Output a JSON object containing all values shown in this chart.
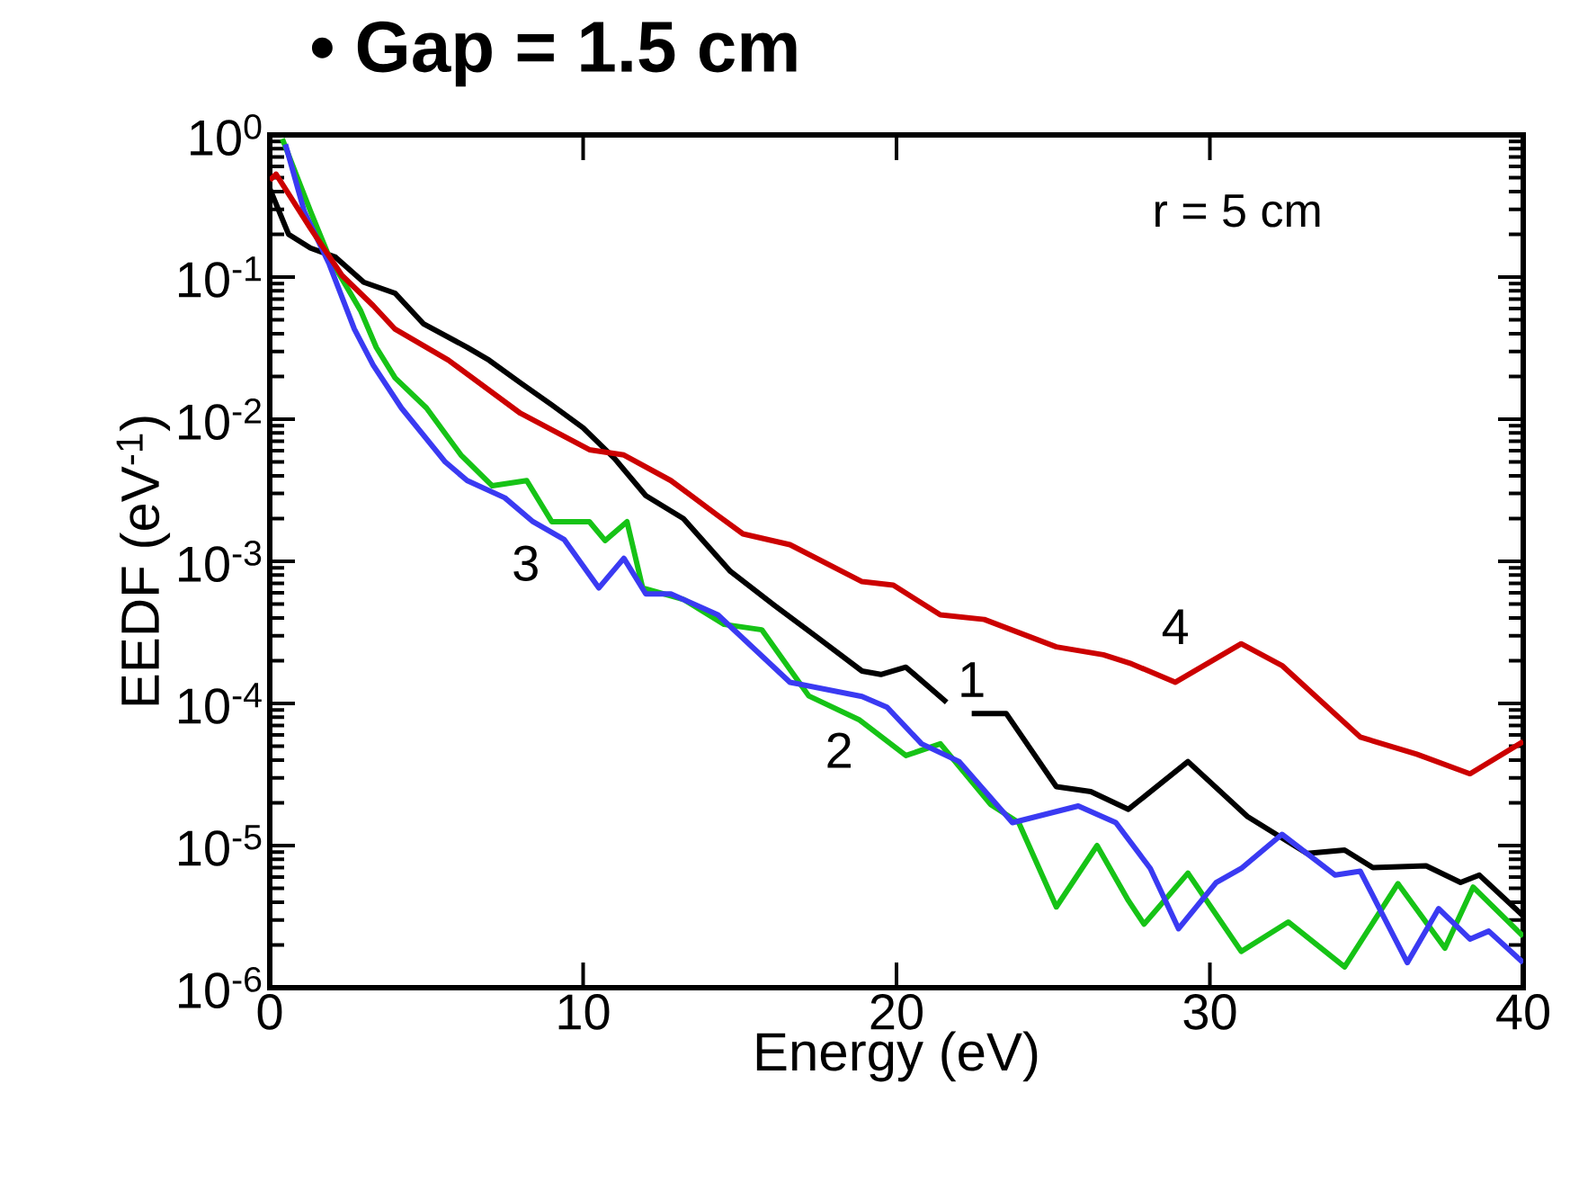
{
  "chart_data": {
    "type": "line",
    "title": "• Gap = 1.5 cm",
    "xlabel": "Energy (eV)",
    "ylabel": "EEDF (eV$^{-1}$)",
    "log": "y",
    "grid": false,
    "legend": false,
    "marker": "none",
    "line_style": "solid",
    "xlim": [
      0,
      40
    ],
    "ylim": [
      1e-06,
      1
    ],
    "xticks": [
      0,
      10,
      20,
      30,
      40
    ],
    "yticks": [
      {
        "value": 1e-06,
        "label": "10$^{-6}$"
      },
      {
        "value": 1e-05,
        "label": "10$^{-5}$"
      },
      {
        "value": 0.0001,
        "label": "10$^{-4}$"
      },
      {
        "value": 0.001,
        "label": "10$^{-3}$"
      },
      {
        "value": 0.01,
        "label": "10$^{-2}$"
      },
      {
        "value": 0.1,
        "label": "10$^{-1}$"
      },
      {
        "value": 1,
        "label": "10$^{0}$"
      }
    ],
    "series": [
      {
        "name": "1",
        "color": "#000000",
        "x": [
          0,
          0.6,
          1.3,
          2.1,
          3,
          4,
          4.9,
          6.3,
          7,
          8,
          9,
          10,
          11,
          12,
          13.2,
          14.7,
          16.1,
          17.4,
          18.9,
          19.5,
          20.3,
          21.6,
          22,
          22.4,
          23.5,
          25.1,
          26.2,
          27.4,
          29.3,
          31.2,
          33.1,
          34.3,
          35.2,
          36.9,
          38,
          38.6,
          40
        ],
        "values": [
          0.42,
          0.2,
          0.16,
          0.138,
          0.092,
          0.077,
          0.047,
          0.032,
          0.026,
          0.018,
          0.0126,
          0.0087,
          0.0053,
          0.0029,
          0.002,
          0.00085,
          0.00049,
          0.0003,
          0.000169,
          0.00016,
          0.00018,
          0.000102,
          null,
          8.5e-05,
          8.5e-05,
          2.6e-05,
          2.4e-05,
          1.8e-05,
          3.9e-05,
          1.6e-05,
          8.8e-06,
          9.3e-06,
          7e-06,
          7.2e-06,
          5.5e-06,
          6.2e-06,
          3.2e-06
        ]
      },
      {
        "name": "2",
        "color": "#16c316",
        "x": [
          0.4,
          1.3,
          1.9,
          2.9,
          3.4,
          4,
          5,
          6.1,
          7.1,
          8.2,
          9,
          10.2,
          10.7,
          11.4,
          11.9,
          13.2,
          14.5,
          15.7,
          17.2,
          18.8,
          20.3,
          21.4,
          23,
          23.9,
          25.1,
          26.4,
          27.4,
          27.9,
          29.3,
          31,
          32.5,
          34.3,
          36,
          37.5,
          38.4,
          40
        ],
        "values": [
          0.94,
          0.29,
          0.138,
          0.058,
          0.032,
          0.0195,
          0.012,
          0.0056,
          0.0034,
          0.0037,
          0.0019,
          0.0019,
          0.0014,
          0.0019,
          0.00065,
          0.00054,
          0.00036,
          0.00033,
          0.000113,
          7.7e-05,
          4.3e-05,
          5.2e-05,
          1.95e-05,
          1.45e-05,
          3.7e-06,
          1e-05,
          4.1e-06,
          2.8e-06,
          6.4e-06,
          1.8e-06,
          2.9e-06,
          1.4e-06,
          5.4e-06,
          1.9e-06,
          5.1e-06,
          2.3e-06
        ]
      },
      {
        "name": "3",
        "color": "#3a3af2",
        "x": [
          0.5,
          1.1,
          1.9,
          2.7,
          3.3,
          4.2,
          5.6,
          6.3,
          7.5,
          8.4,
          9.4,
          10.5,
          11.3,
          12,
          12.8,
          14.3,
          16.6,
          18.9,
          19.7,
          20.8,
          22,
          23.7,
          25.8,
          27,
          28.1,
          29,
          30.2,
          31,
          32.3,
          34,
          34.8,
          36.3,
          37.3,
          38.3,
          38.9,
          40
        ],
        "values": [
          0.86,
          0.29,
          0.123,
          0.043,
          0.024,
          0.012,
          0.005,
          0.0037,
          0.0028,
          0.0019,
          0.00142,
          0.00065,
          0.00105,
          0.00059,
          0.00059,
          0.00042,
          0.000141,
          0.000112,
          9.4e-05,
          5.2e-05,
          3.9e-05,
          1.45e-05,
          1.9e-05,
          1.45e-05,
          6.9e-06,
          2.6e-06,
          5.5e-06,
          6.9e-06,
          1.2e-05,
          6.2e-06,
          6.6e-06,
          1.5e-06,
          3.6e-06,
          2.2e-06,
          2.5e-06,
          1.5e-06
        ]
      },
      {
        "name": "4",
        "color": "#cc0000",
        "x": [
          0,
          0.2,
          1.3,
          2.3,
          3.3,
          4,
          5.7,
          8,
          10.2,
          11.3,
          12.8,
          14.3,
          15.1,
          16.6,
          18.9,
          19.9,
          21.4,
          22.8,
          25.1,
          26.6,
          27.5,
          28.9,
          31,
          32.3,
          34.8,
          36.6,
          38.3,
          40
        ],
        "values": [
          0.48,
          0.53,
          0.22,
          0.103,
          0.063,
          0.043,
          0.026,
          0.011,
          0.0061,
          0.0056,
          0.0037,
          0.0021,
          0.00156,
          0.00131,
          0.00072,
          0.00068,
          0.00042,
          0.00039,
          0.00025,
          0.00022,
          0.00019,
          0.000141,
          0.000263,
          0.000185,
          5.8e-05,
          4.4e-05,
          3.2e-05,
          5.4e-05
        ]
      }
    ],
    "annotations": [
      "r = 5 cm"
    ]
  }
}
